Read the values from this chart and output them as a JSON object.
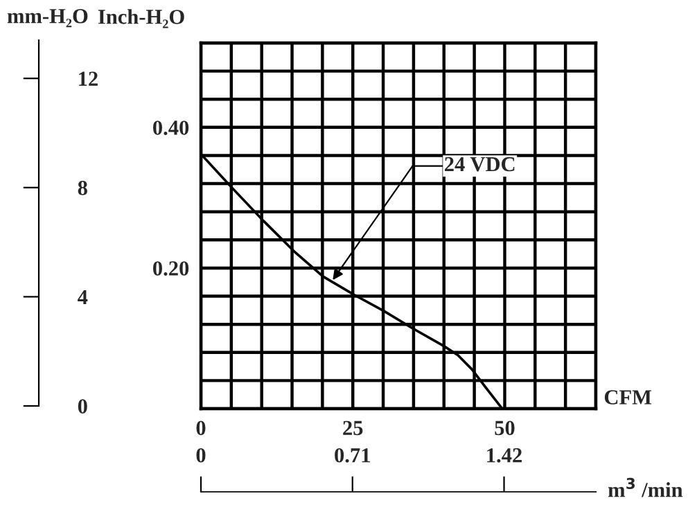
{
  "chart_data": {
    "type": "line",
    "xlabel": "CFM",
    "ylabel": "Inch-H₂O",
    "y2label": "mm-H₂O",
    "x2label": "m$^{3}$ /min",
    "xlim": [
      0,
      65
    ],
    "xticks": [
      0,
      {
        "value": 5,
        "label": null
      },
      {
        "value": 10,
        "label": null
      },
      {
        "value": 15,
        "label": null
      },
      {
        "value": 20,
        "label": null
      },
      25,
      {
        "value": 30,
        "label": null
      },
      {
        "value": 35,
        "label": null
      },
      {
        "value": 40,
        "label": null
      },
      {
        "value": 45,
        "label": null
      },
      50,
      {
        "value": 55,
        "label": null
      },
      {
        "value": 60,
        "label": null
      },
      {
        "value": 65,
        "label": null
      }
    ],
    "ylim": [
      0,
      0.52
    ],
    "yticks": [
      {
        "value": 0,
        "label": null
      },
      {
        "value": 0.04,
        "label": null
      },
      {
        "value": 0.08,
        "label": null
      },
      {
        "value": 0.12,
        "label": null
      },
      {
        "value": 0.16,
        "label": null
      },
      {
        "value": 0.2,
        "label": "0.20"
      },
      {
        "value": 0.24,
        "label": null
      },
      {
        "value": 0.28,
        "label": null
      },
      {
        "value": 0.32,
        "label": null
      },
      {
        "value": 0.36,
        "label": null
      },
      {
        "value": 0.4,
        "label": "0.40"
      },
      {
        "value": 0.44,
        "label": null
      },
      {
        "value": 0.48,
        "label": null
      },
      {
        "value": 0.52,
        "label": null
      }
    ],
    "y2lim": [
      0,
      13.4
    ],
    "y2ticks": [
      0,
      4,
      8,
      12
    ],
    "x2lim": [
      0,
      1.85
    ],
    "x2ticks": [
      0,
      0.71,
      1.42
    ],
    "grid": true,
    "marker": "none",
    "line_style": "solid",
    "series": [
      {
        "color": "#000000",
        "x": [
          0,
          4.8,
          10.3,
          15.3,
          20.1,
          25.2,
          30.1,
          34.7,
          40,
          42.3,
          44.6,
          46.9,
          49.6
        ],
        "values": [
          0.362,
          0.317,
          0.267,
          0.224,
          0.188,
          0.162,
          0.139,
          0.115,
          0.089,
          0.076,
          0.056,
          0.03,
          0
        ]
      }
    ],
    "annotations": [
      {
        "text": "24 VDC",
        "x": 21.7,
        "y": 0.183
      }
    ]
  }
}
